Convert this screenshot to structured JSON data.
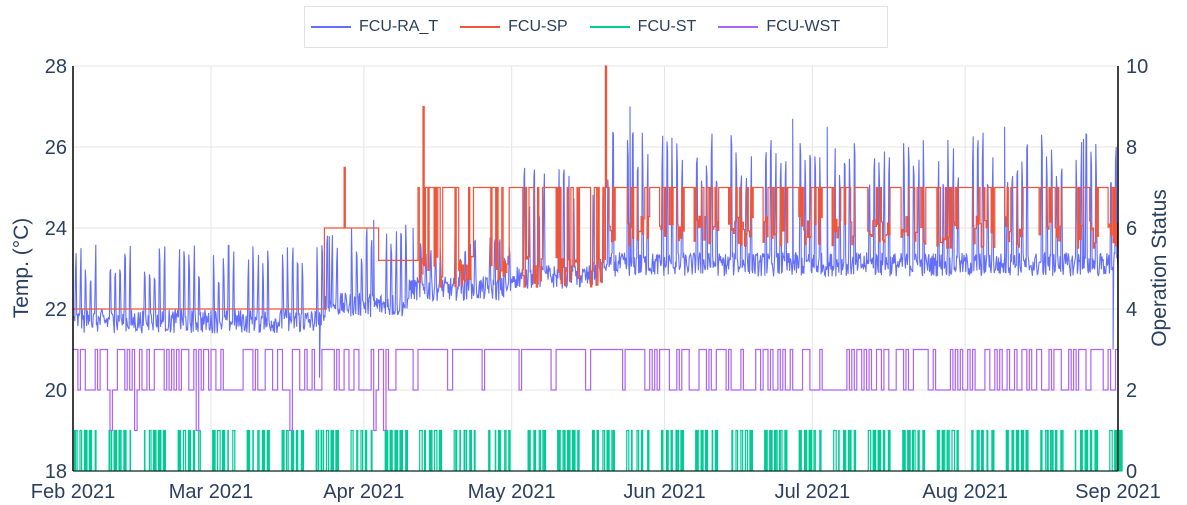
{
  "chart_data": {
    "type": "line",
    "title": "",
    "legend_position": "top-center",
    "x_axis": {
      "type": "date",
      "range": [
        "2021-02-01",
        "2021-09-01"
      ],
      "ticks": [
        {
          "date": "2021-02-01",
          "label": "Feb 2021"
        },
        {
          "date": "2021-03-01",
          "label": "Mar 2021"
        },
        {
          "date": "2021-04-01",
          "label": "Apr 2021"
        },
        {
          "date": "2021-05-01",
          "label": "May 2021"
        },
        {
          "date": "2021-06-01",
          "label": "Jun 2021"
        },
        {
          "date": "2021-07-01",
          "label": "Jul 2021"
        },
        {
          "date": "2021-08-01",
          "label": "Aug 2021"
        },
        {
          "date": "2021-09-01",
          "label": "Sep 2021"
        }
      ],
      "grid": true
    },
    "y_left": {
      "label": "Temp. (°C)",
      "range": [
        18,
        28
      ],
      "ticks": [
        18,
        20,
        22,
        24,
        26,
        28
      ],
      "grid": true
    },
    "y_right": {
      "label": "Operation Status",
      "range": [
        0,
        10
      ],
      "ticks": [
        0,
        2,
        4,
        6,
        8,
        10
      ]
    },
    "series": [
      {
        "name": "FCU-RA_T",
        "axis": "left",
        "color": "#636efa",
        "pattern": [
          {
            "from": "2021-02-01",
            "to": "2021-03-24",
            "base": 21.4,
            "peak": 23.6
          },
          {
            "from": "2021-03-24",
            "to": "2021-04-10",
            "base": 21.8,
            "peak": 24.1
          },
          {
            "from": "2021-04-10",
            "to": "2021-05-01",
            "base": 22.2,
            "peak": 23.8
          },
          {
            "from": "2021-05-01",
            "to": "2021-05-20",
            "base": 22.5,
            "peak": 25.5
          },
          {
            "from": "2021-05-20",
            "to": "2021-09-01",
            "base": 22.8,
            "peak": 26.4
          }
        ],
        "points": [
          [
            "2021-03-23",
            20.3
          ],
          [
            "2021-03-25",
            23.8
          ],
          [
            "2021-04-03",
            24.2
          ],
          [
            "2021-04-11",
            24.0
          ],
          [
            "2021-05-25",
            27.0
          ],
          [
            "2021-06-27",
            26.7
          ],
          [
            "2021-07-04",
            26.5
          ],
          [
            "2021-08-09",
            26.5
          ],
          [
            "2021-08-25",
            26.2
          ],
          [
            "2021-08-31",
            21.0
          ]
        ]
      },
      {
        "name": "FCU-SP",
        "axis": "left",
        "color": "#ef553b",
        "pattern": [
          {
            "from": "2021-02-01",
            "to": "2021-03-24",
            "level": 22.0
          },
          {
            "from": "2021-03-24",
            "to": "2021-04-04",
            "level": 24.0
          },
          {
            "from": "2021-04-04",
            "to": "2021-04-12",
            "level": 23.2
          },
          {
            "from": "2021-04-12",
            "to": "2021-05-20",
            "high": 25.0,
            "low": 22.5
          },
          {
            "from": "2021-05-20",
            "to": "2021-09-01",
            "high": 25.0,
            "low": 23.5
          }
        ],
        "points": [
          [
            "2021-03-28",
            25.5
          ],
          [
            "2021-04-13",
            27.0
          ],
          [
            "2021-05-20",
            28.0
          ]
        ]
      },
      {
        "name": "FCU-ST",
        "axis": "right",
        "color": "#00cc96",
        "levels": [
          0,
          1
        ],
        "description_values": {
          "low": 0,
          "high": 1
        }
      },
      {
        "name": "FCU-WST",
        "axis": "right",
        "color": "#ab63fa",
        "levels": [
          1,
          2,
          3
        ],
        "description_values": {
          "low": 2,
          "high": 3
        }
      }
    ]
  }
}
